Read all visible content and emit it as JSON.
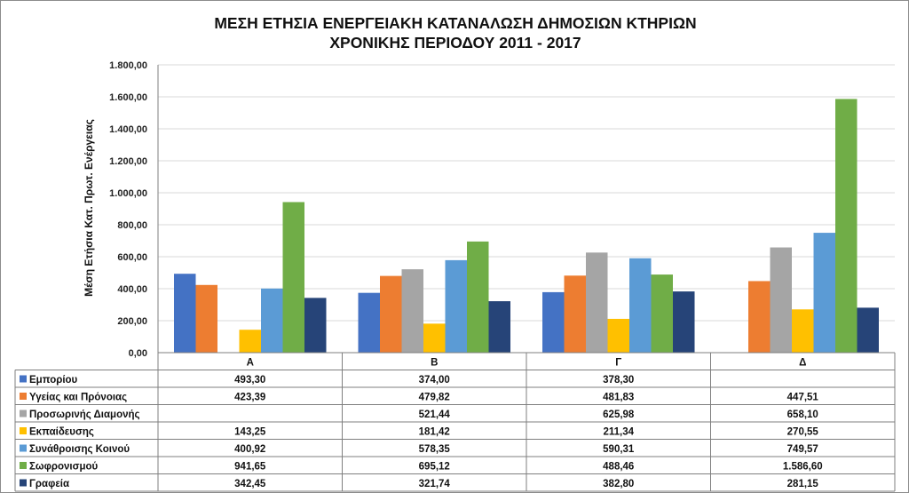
{
  "chart_data": {
    "type": "bar",
    "title_line1": "ΜΕΣΗ ΕΤΗΣΙΑ ΕΝΕΡΓΕΙΑΚΗ ΚΑΤΑΝΑΛΩΣΗ ΔΗΜΟΣΙΩΝ ΚΤΗΡΙΩΝ",
    "title_line2": "ΧΡΟΝΙΚΗΣ ΠΕΡΙΟΔΟΥ 2011 - 2017",
    "ylabel": "Μέση Ετήσια Κατ. Πρωτ. Ενέργειας",
    "xlabel": "",
    "ylim": [
      0,
      1800
    ],
    "yticks": [
      0,
      200,
      400,
      600,
      800,
      1000,
      1200,
      1400,
      1600,
      1800
    ],
    "ytick_labels": [
      "0,00",
      "200,00",
      "400,00",
      "600,00",
      "800,00",
      "1.000,00",
      "1.200,00",
      "1.400,00",
      "1.600,00",
      "1.800,00"
    ],
    "grid": true,
    "legend": "data-table",
    "categories": [
      "Α",
      "Β",
      "Γ",
      "Δ"
    ],
    "series": [
      {
        "name": "Εμπορίου",
        "color": "#4472C4",
        "values": [
          493.3,
          374.0,
          378.3,
          null
        ],
        "labels": [
          "493,30",
          "374,00",
          "378,30",
          ""
        ]
      },
      {
        "name": "Υγείας και Πρόνοιας",
        "color": "#ED7D31",
        "values": [
          423.39,
          479.82,
          481.83,
          447.51
        ],
        "labels": [
          "423,39",
          "479,82",
          "481,83",
          "447,51"
        ]
      },
      {
        "name": "Προσωρινής Διαμονής",
        "color": "#A5A5A5",
        "values": [
          null,
          521.44,
          625.98,
          658.1
        ],
        "labels": [
          "",
          "521,44",
          "625,98",
          "658,10"
        ]
      },
      {
        "name": "Εκπαίδευσης",
        "color": "#FFC000",
        "values": [
          143.25,
          181.42,
          211.34,
          270.55
        ],
        "labels": [
          "143,25",
          "181,42",
          "211,34",
          "270,55"
        ]
      },
      {
        "name": "Συνάθροισης Κοινού",
        "color": "#5B9BD5",
        "values": [
          400.92,
          578.35,
          590.31,
          749.57
        ],
        "labels": [
          "400,92",
          "578,35",
          "590,31",
          "749,57"
        ]
      },
      {
        "name": "Σωφρονισμού",
        "color": "#70AD47",
        "values": [
          941.65,
          695.12,
          488.46,
          1586.6
        ],
        "labels": [
          "941,65",
          "695,12",
          "488,46",
          "1.586,60"
        ]
      },
      {
        "name": "Γραφεία",
        "color": "#264478",
        "values": [
          342.45,
          321.74,
          382.8,
          281.15
        ],
        "labels": [
          "342,45",
          "321,74",
          "382,80",
          "281,15"
        ]
      }
    ]
  }
}
